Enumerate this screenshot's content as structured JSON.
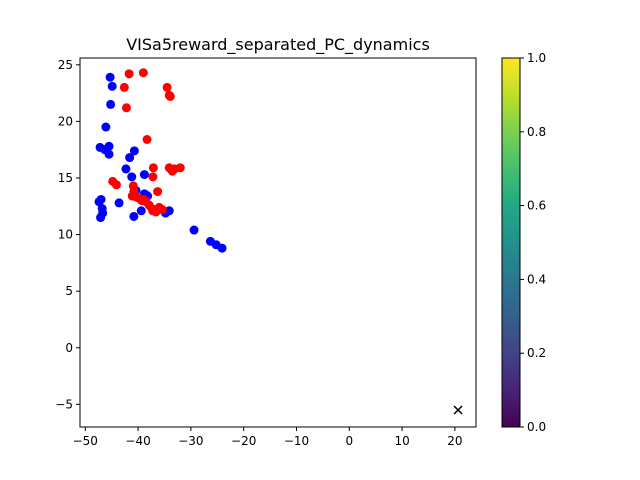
{
  "chart_data": {
    "type": "scatter",
    "title": "VISa5reward_separated_PC_dynamics",
    "xlabel": "",
    "ylabel": "",
    "xlim": [
      -51,
      24
    ],
    "ylim": [
      -7,
      25.6
    ],
    "grid": false,
    "x_ticks": [
      -50,
      -40,
      -30,
      -20,
      -10,
      0,
      10,
      20
    ],
    "x_tick_labels": [
      "−50",
      "−40",
      "−30",
      "−20",
      "−10",
      "0",
      "10",
      "20"
    ],
    "y_ticks": [
      -5,
      0,
      5,
      10,
      15,
      20,
      25
    ],
    "y_tick_labels": [
      "−5",
      "0",
      "5",
      "10",
      "15",
      "20",
      "25"
    ],
    "colorbar": {
      "colormap": "viridis",
      "range": [
        0,
        1
      ],
      "ticks": [
        0.0,
        0.2,
        0.4,
        0.6,
        0.8,
        1.0
      ],
      "tick_labels": [
        "0.0",
        "0.2",
        "0.4",
        "0.6",
        "0.8",
        "1.0"
      ]
    },
    "series": [
      {
        "color": "#0000ff",
        "marker": "circle",
        "points": [
          [
            -45.3,
            23.9
          ],
          [
            -44.9,
            23.1
          ],
          [
            -45.2,
            21.5
          ],
          [
            -46.1,
            19.5
          ],
          [
            -47.2,
            17.7
          ],
          [
            -46.3,
            17.5
          ],
          [
            -45.5,
            17.8
          ],
          [
            -45.5,
            17.1
          ],
          [
            -40.7,
            17.4
          ],
          [
            -42.3,
            15.8
          ],
          [
            -41.6,
            16.8
          ],
          [
            -38.8,
            15.3
          ],
          [
            -41.2,
            15.1
          ],
          [
            -40.4,
            13.9
          ],
          [
            -38.5,
            13.5
          ],
          [
            -38.2,
            13.4
          ],
          [
            -38.8,
            13.6
          ],
          [
            -43.6,
            12.8
          ],
          [
            -47.4,
            12.9
          ],
          [
            -47.0,
            13.1
          ],
          [
            -46.8,
            12.3
          ],
          [
            -46.7,
            11.9
          ],
          [
            -47.1,
            11.5
          ],
          [
            -40.8,
            11.6
          ],
          [
            -39.4,
            12.1
          ],
          [
            -34.8,
            11.9
          ],
          [
            -34.1,
            12.1
          ],
          [
            -29.4,
            10.4
          ],
          [
            -26.3,
            9.4
          ],
          [
            -25.2,
            9.1
          ],
          [
            -24.1,
            8.8
          ]
        ]
      },
      {
        "color": "#ff0000",
        "marker": "circle",
        "points": [
          [
            -41.7,
            24.2
          ],
          [
            -39.0,
            24.3
          ],
          [
            -42.6,
            23.0
          ],
          [
            -34.5,
            23.0
          ],
          [
            -34.1,
            22.3
          ],
          [
            -33.9,
            22.2
          ],
          [
            -42.2,
            21.2
          ],
          [
            -38.3,
            18.4
          ],
          [
            -37.1,
            15.9
          ],
          [
            -37.2,
            15.1
          ],
          [
            -34.1,
            15.9
          ],
          [
            -33.5,
            15.6
          ],
          [
            -33.1,
            15.8
          ],
          [
            -32.0,
            15.9
          ],
          [
            -44.8,
            14.7
          ],
          [
            -44.1,
            14.4
          ],
          [
            -40.9,
            14.3
          ],
          [
            -40.8,
            13.8
          ],
          [
            -41.1,
            13.4
          ],
          [
            -40.3,
            13.3
          ],
          [
            -39.8,
            13.2
          ],
          [
            -39.3,
            13.0
          ],
          [
            -38.5,
            12.9
          ],
          [
            -37.9,
            12.6
          ],
          [
            -37.4,
            12.3
          ],
          [
            -36.6,
            12.0
          ],
          [
            -36.0,
            12.4
          ],
          [
            -35.4,
            12.2
          ],
          [
            -36.3,
            13.8
          ],
          [
            -37.2,
            12.1
          ],
          [
            -38.9,
            13.1
          ]
        ]
      },
      {
        "color": "#000000",
        "marker": "x",
        "points": [
          [
            20.6,
            -5.5
          ]
        ]
      }
    ]
  }
}
